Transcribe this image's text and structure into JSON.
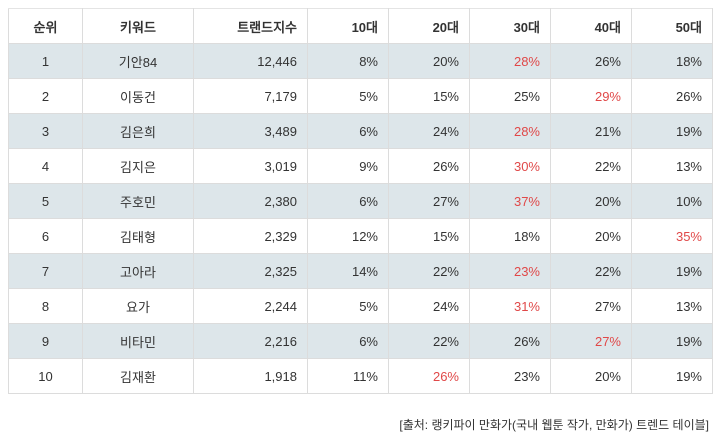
{
  "colors": {
    "shaded_row": "#dde6ea",
    "highlight_text": "#e04848",
    "border": "#dcdcdc"
  },
  "table": {
    "headers": [
      "순위",
      "키워드",
      "트랜드지수",
      "10대",
      "20대",
      "30대",
      "40대",
      "50대"
    ],
    "rows": [
      {
        "rank": "1",
        "keyword": "기안84",
        "index": "12,446",
        "ages": [
          "8%",
          "20%",
          "28%",
          "26%",
          "18%"
        ],
        "highlight": 2
      },
      {
        "rank": "2",
        "keyword": "이동건",
        "index": "7,179",
        "ages": [
          "5%",
          "15%",
          "25%",
          "29%",
          "26%"
        ],
        "highlight": 3
      },
      {
        "rank": "3",
        "keyword": "김은희",
        "index": "3,489",
        "ages": [
          "6%",
          "24%",
          "28%",
          "21%",
          "19%"
        ],
        "highlight": 2
      },
      {
        "rank": "4",
        "keyword": "김지은",
        "index": "3,019",
        "ages": [
          "9%",
          "26%",
          "30%",
          "22%",
          "13%"
        ],
        "highlight": 2
      },
      {
        "rank": "5",
        "keyword": "주호민",
        "index": "2,380",
        "ages": [
          "6%",
          "27%",
          "37%",
          "20%",
          "10%"
        ],
        "highlight": 2
      },
      {
        "rank": "6",
        "keyword": "김태형",
        "index": "2,329",
        "ages": [
          "12%",
          "15%",
          "18%",
          "20%",
          "35%"
        ],
        "highlight": 4
      },
      {
        "rank": "7",
        "keyword": "고아라",
        "index": "2,325",
        "ages": [
          "14%",
          "22%",
          "23%",
          "22%",
          "19%"
        ],
        "highlight": 2
      },
      {
        "rank": "8",
        "keyword": "요가",
        "index": "2,244",
        "ages": [
          "5%",
          "24%",
          "31%",
          "27%",
          "13%"
        ],
        "highlight": 2
      },
      {
        "rank": "9",
        "keyword": "비타민",
        "index": "2,216",
        "ages": [
          "6%",
          "22%",
          "26%",
          "27%",
          "19%"
        ],
        "highlight": 3
      },
      {
        "rank": "10",
        "keyword": "김재환",
        "index": "1,918",
        "ages": [
          "11%",
          "26%",
          "23%",
          "20%",
          "19%"
        ],
        "highlight": 1
      }
    ]
  },
  "source": "[출처: 랭키파이 만화가(국내 웹툰 작가, 만화가) 트렌드 테이블]"
}
